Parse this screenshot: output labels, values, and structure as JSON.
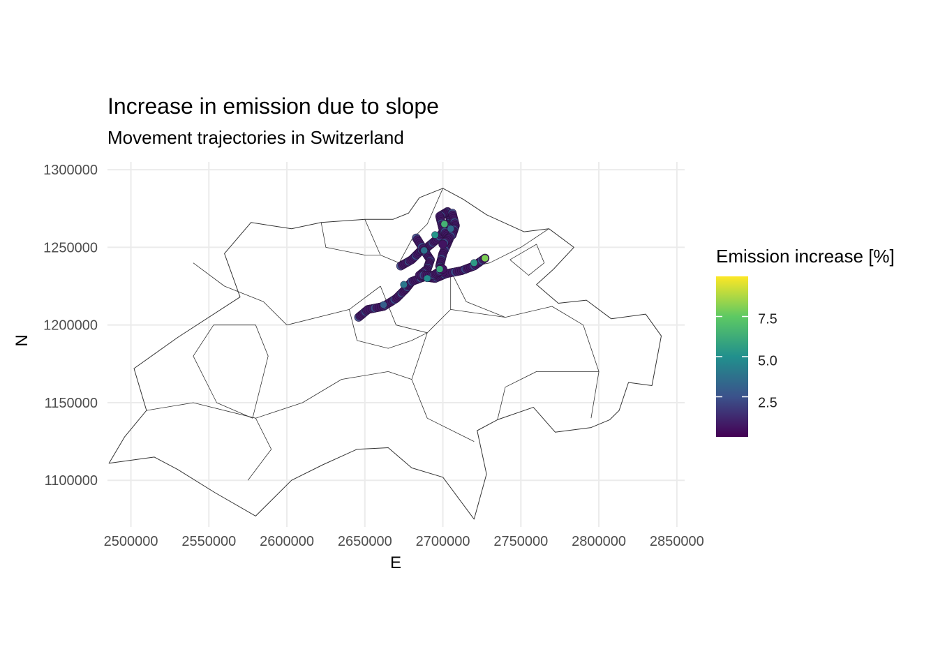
{
  "chart_data": {
    "type": "map-scatter",
    "title": "Increase in emission due to slope",
    "subtitle": "Movement trajectories in Switzerland",
    "xlabel": "E",
    "ylabel": "N",
    "xlim": [
      2485000,
      2855000
    ],
    "ylim": [
      1070000,
      1305000
    ],
    "x_ticks": [
      2500000,
      2550000,
      2600000,
      2650000,
      2700000,
      2750000,
      2800000,
      2850000
    ],
    "x_tick_labels": [
      "2500000",
      "2550000",
      "2600000",
      "2650000",
      "2700000",
      "2750000",
      "2800000",
      "2850000"
    ],
    "y_ticks": [
      1100000,
      1150000,
      1200000,
      1250000,
      1300000
    ],
    "y_tick_labels": [
      "1100000",
      "1150000",
      "1200000",
      "1250000",
      "1300000"
    ],
    "grid": true,
    "legend": {
      "title": "Emission increase [%]",
      "placement": "right",
      "colormap": "viridis",
      "range": [
        0,
        10
      ],
      "ticks": [
        2.5,
        5.0,
        7.5
      ],
      "tick_labels": [
        "2.5",
        "5.0",
        "7.5"
      ]
    },
    "border": [
      [
        2486000,
        1111000
      ],
      [
        2496000,
        1128000
      ],
      [
        2510000,
        1145000
      ],
      [
        2502000,
        1172000
      ],
      [
        2530000,
        1192000
      ],
      [
        2570000,
        1218000
      ],
      [
        2560000,
        1246000
      ],
      [
        2577000,
        1266000
      ],
      [
        2603000,
        1262000
      ],
      [
        2622000,
        1266000
      ],
      [
        2650000,
        1268000
      ],
      [
        2668000,
        1268000
      ],
      [
        2678000,
        1272000
      ],
      [
        2685000,
        1282000
      ],
      [
        2700000,
        1288000
      ],
      [
        2713000,
        1281000
      ],
      [
        2728000,
        1271000
      ],
      [
        2752000,
        1260000
      ],
      [
        2768000,
        1262000
      ],
      [
        2784000,
        1250000
      ],
      [
        2771000,
        1236000
      ],
      [
        2760000,
        1226000
      ],
      [
        2774000,
        1214000
      ],
      [
        2792000,
        1216000
      ],
      [
        2808000,
        1204000
      ],
      [
        2830000,
        1207000
      ],
      [
        2840000,
        1193000
      ],
      [
        2834000,
        1161000
      ],
      [
        2819000,
        1163000
      ],
      [
        2813000,
        1145000
      ],
      [
        2807000,
        1139000
      ],
      [
        2795000,
        1134000
      ],
      [
        2772000,
        1131000
      ],
      [
        2758000,
        1147000
      ],
      [
        2735000,
        1139000
      ],
      [
        2722000,
        1132000
      ],
      [
        2728000,
        1104000
      ],
      [
        2720000,
        1075000
      ],
      [
        2700000,
        1102000
      ],
      [
        2680000,
        1108000
      ],
      [
        2665000,
        1121000
      ],
      [
        2645000,
        1120000
      ],
      [
        2623000,
        1110000
      ],
      [
        2603000,
        1100000
      ],
      [
        2580000,
        1077000
      ],
      [
        2554000,
        1092000
      ],
      [
        2530000,
        1107000
      ],
      [
        2515000,
        1115000
      ],
      [
        2486000,
        1111000
      ]
    ],
    "boundaries": [
      [
        [
          2540000,
          1240000
        ],
        [
          2560000,
          1225000
        ],
        [
          2585000,
          1215000
        ],
        [
          2600000,
          1200000
        ],
        [
          2640000,
          1210000
        ],
        [
          2660000,
          1225000
        ]
      ],
      [
        [
          2553000,
          1200000
        ],
        [
          2580000,
          1200000
        ],
        [
          2588000,
          1180000
        ],
        [
          2578000,
          1140000
        ],
        [
          2555000,
          1150000
        ],
        [
          2540000,
          1180000
        ],
        [
          2553000,
          1200000
        ]
      ],
      [
        [
          2510000,
          1145000
        ],
        [
          2540000,
          1150000
        ],
        [
          2580000,
          1140000
        ],
        [
          2610000,
          1150000
        ],
        [
          2635000,
          1165000
        ],
        [
          2665000,
          1170000
        ]
      ],
      [
        [
          2580000,
          1140000
        ],
        [
          2590000,
          1120000
        ],
        [
          2575000,
          1100000
        ]
      ],
      [
        [
          2660000,
          1225000
        ],
        [
          2670000,
          1200000
        ],
        [
          2690000,
          1195000
        ],
        [
          2705000,
          1210000
        ],
        [
          2705000,
          1235000
        ]
      ],
      [
        [
          2690000,
          1195000
        ],
        [
          2680000,
          1165000
        ],
        [
          2690000,
          1140000
        ],
        [
          2720000,
          1125000
        ]
      ],
      [
        [
          2665000,
          1170000
        ],
        [
          2680000,
          1165000
        ]
      ],
      [
        [
          2705000,
          1210000
        ],
        [
          2740000,
          1205000
        ],
        [
          2770000,
          1212000
        ],
        [
          2790000,
          1200000
        ],
        [
          2800000,
          1170000
        ],
        [
          2795000,
          1140000
        ]
      ],
      [
        [
          2705000,
          1235000
        ],
        [
          2730000,
          1240000
        ],
        [
          2750000,
          1250000
        ],
        [
          2768000,
          1262000
        ]
      ],
      [
        [
          2705000,
          1235000
        ],
        [
          2715000,
          1215000
        ],
        [
          2740000,
          1205000
        ]
      ],
      [
        [
          2650000,
          1268000
        ],
        [
          2660000,
          1245000
        ],
        [
          2672000,
          1240000
        ],
        [
          2680000,
          1255000
        ],
        [
          2690000,
          1265000
        ],
        [
          2700000,
          1288000
        ]
      ],
      [
        [
          2640000,
          1210000
        ],
        [
          2645000,
          1190000
        ],
        [
          2665000,
          1185000
        ],
        [
          2680000,
          1190000
        ],
        [
          2690000,
          1195000
        ]
      ],
      [
        [
          2735000,
          1139000
        ],
        [
          2740000,
          1160000
        ],
        [
          2760000,
          1170000
        ],
        [
          2800000,
          1170000
        ]
      ],
      [
        [
          2743000,
          1242000
        ],
        [
          2755000,
          1232000
        ],
        [
          2765000,
          1240000
        ],
        [
          2760000,
          1252000
        ],
        [
          2743000,
          1242000
        ]
      ],
      [
        [
          2622000,
          1266000
        ],
        [
          2625000,
          1250000
        ],
        [
          2650000,
          1245000
        ],
        [
          2660000,
          1245000
        ]
      ]
    ],
    "trajectories": [
      [
        [
          2646000,
          1205000
        ],
        [
          2652000,
          1210000
        ],
        [
          2662000,
          1212000
        ],
        [
          2670000,
          1217000
        ],
        [
          2676000,
          1223000
        ],
        [
          2680000,
          1228000
        ],
        [
          2688000,
          1231000
        ],
        [
          2695000,
          1230000
        ],
        [
          2702000,
          1233000
        ],
        [
          2712000,
          1235000
        ],
        [
          2720000,
          1238000
        ],
        [
          2727000,
          1243000
        ]
      ],
      [
        [
          2673000,
          1238000
        ],
        [
          2680000,
          1242000
        ],
        [
          2686000,
          1248000
        ],
        [
          2690000,
          1250000
        ],
        [
          2696000,
          1255000
        ],
        [
          2702000,
          1262000
        ],
        [
          2705000,
          1268000
        ],
        [
          2703000,
          1273000
        ],
        [
          2698000,
          1270000
        ],
        [
          2700000,
          1262000
        ],
        [
          2704000,
          1255000
        ],
        [
          2700000,
          1246000
        ],
        [
          2698000,
          1238000
        ],
        [
          2700000,
          1234000
        ]
      ],
      [
        [
          2683000,
          1256000
        ],
        [
          2688000,
          1248000
        ],
        [
          2692000,
          1242000
        ],
        [
          2690000,
          1236000
        ],
        [
          2685000,
          1232000
        ],
        [
          2694000,
          1232000
        ],
        [
          2700000,
          1236000
        ]
      ],
      [
        [
          2706000,
          1272000
        ],
        [
          2708000,
          1264000
        ],
        [
          2706000,
          1258000
        ],
        [
          2700000,
          1252000
        ]
      ]
    ],
    "hotspots": [
      [
        2701000,
        1265000,
        6.5
      ],
      [
        2695000,
        1258000,
        5.2
      ],
      [
        2690000,
        1230000,
        4.8
      ],
      [
        2698000,
        1236000,
        6.0
      ],
      [
        2720000,
        1240000,
        5.5
      ],
      [
        2705000,
        1262000,
        3.5
      ],
      [
        2662000,
        1213000,
        3.0
      ],
      [
        2675000,
        1226000,
        4.0
      ],
      [
        2688000,
        1248000,
        3.8
      ],
      [
        2727000,
        1243000,
        8.0
      ]
    ]
  }
}
